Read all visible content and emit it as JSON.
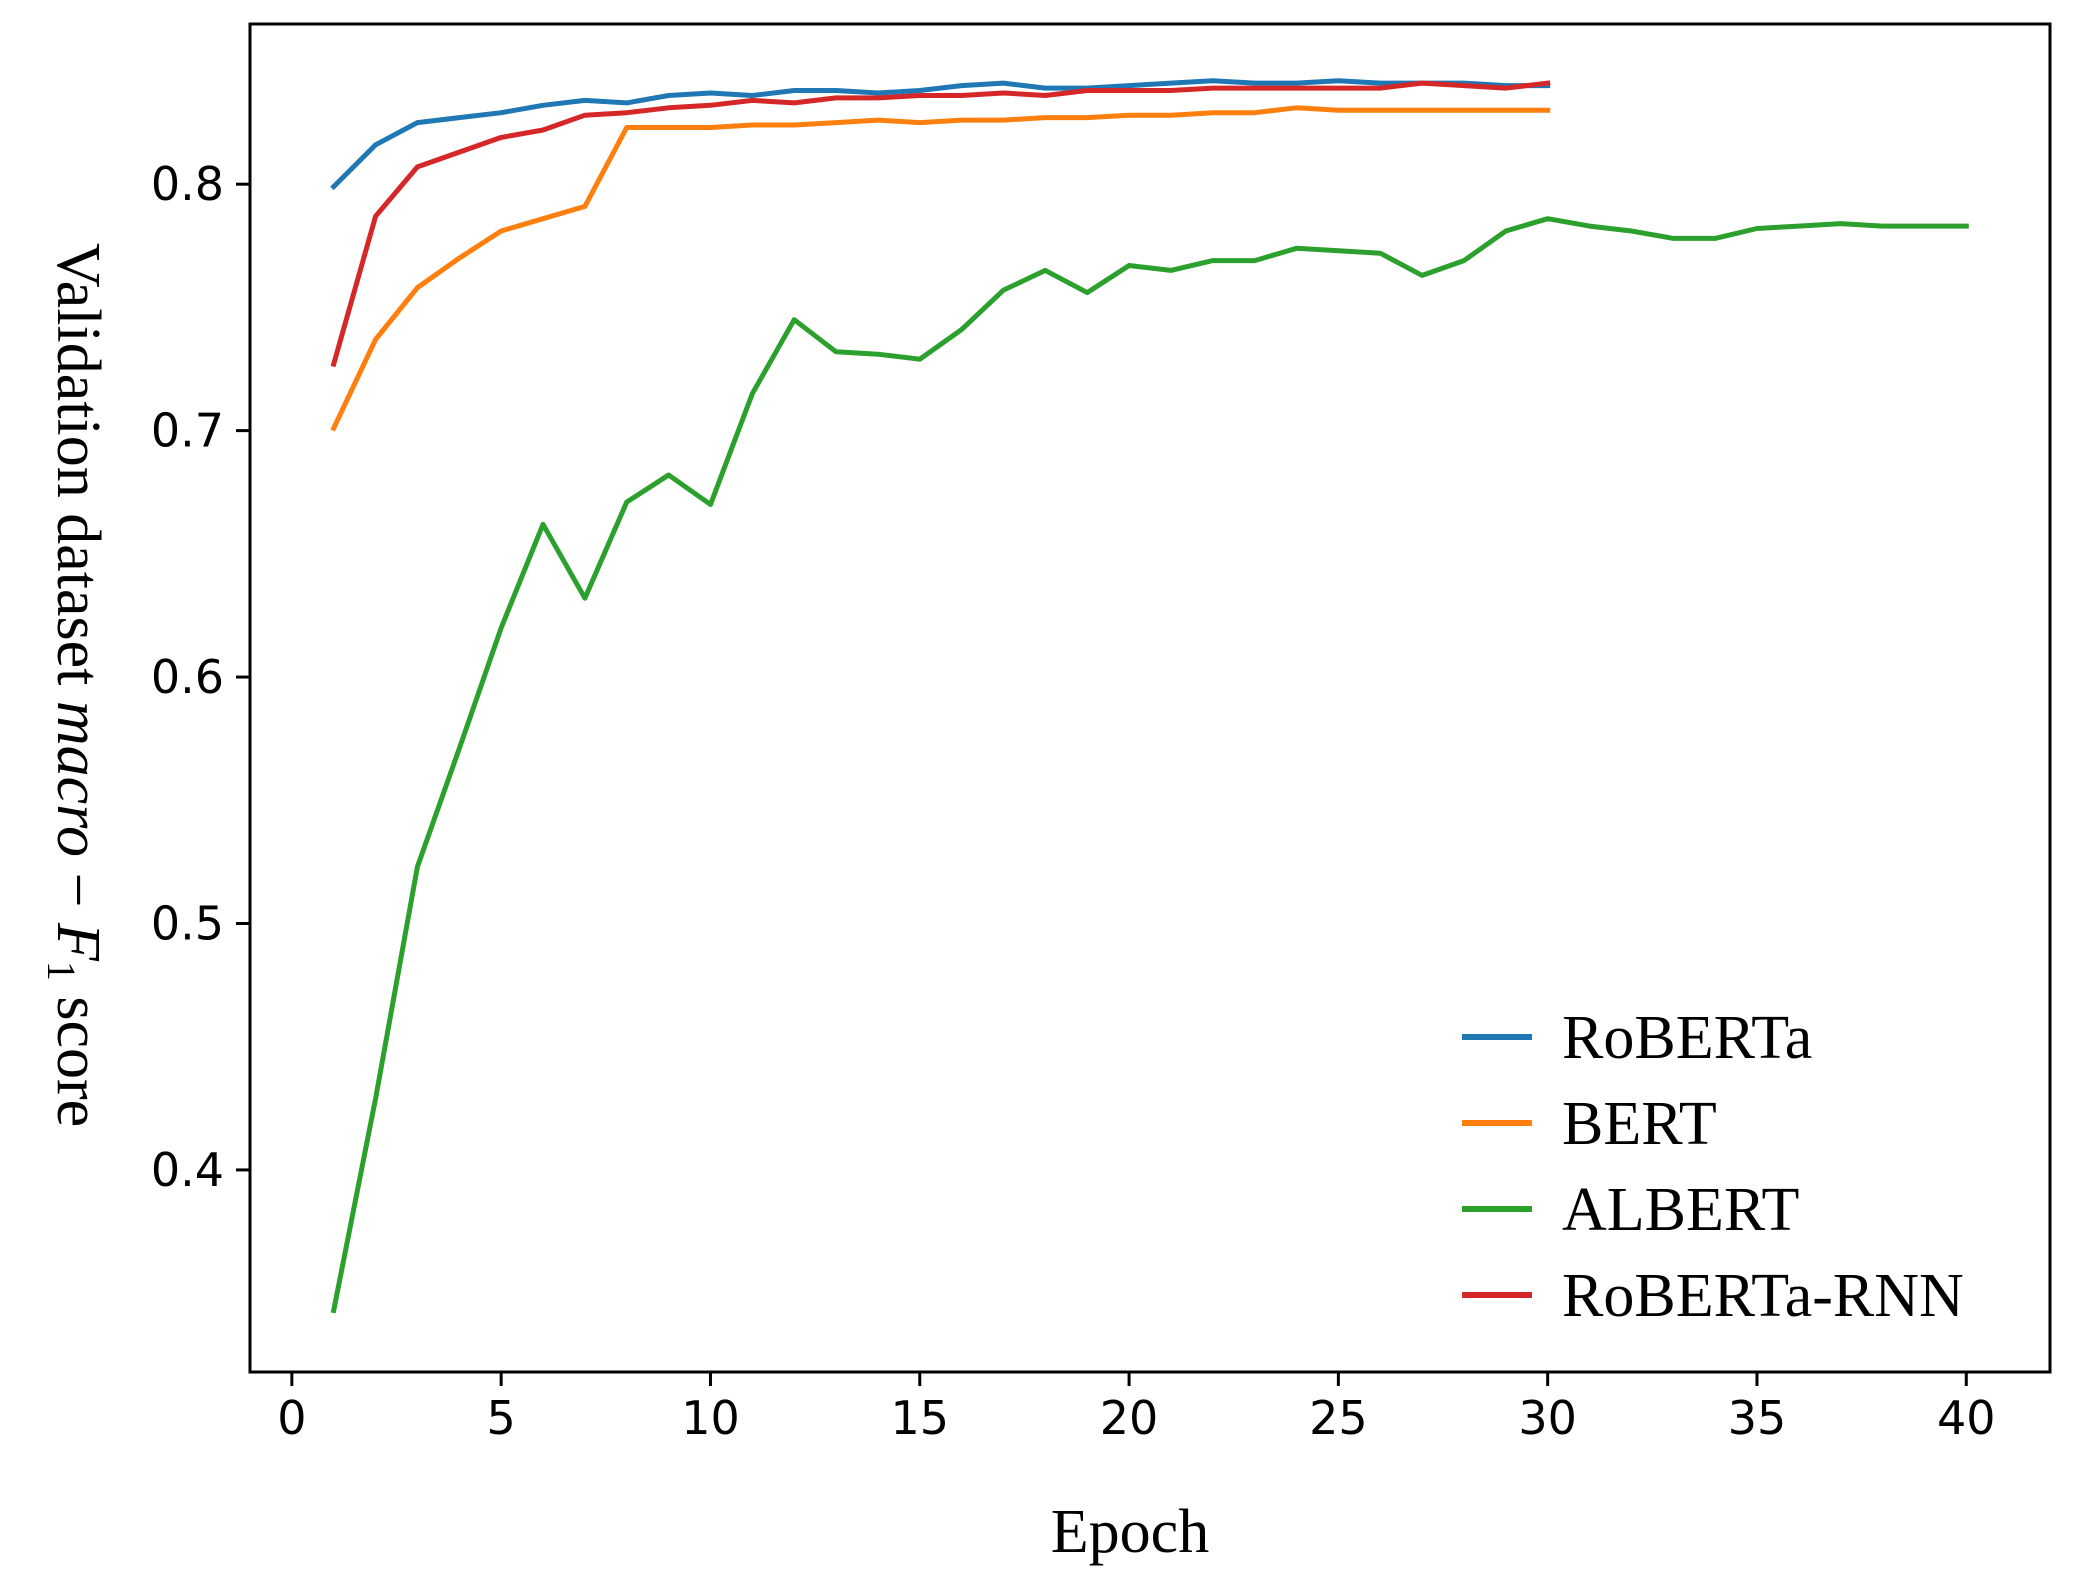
{
  "chart_data": {
    "type": "line",
    "xlabel": "Epoch",
    "ylabel_parts": {
      "prefix": "Validation dataset ",
      "italic": "macro",
      "dash": " − ",
      "F": "F",
      "sub": "1",
      "suffix": " score"
    },
    "xlim": [
      -1,
      42
    ],
    "ylim": [
      0.318,
      0.865
    ],
    "xticks": [
      0,
      5,
      10,
      15,
      20,
      25,
      30,
      35,
      40
    ],
    "yticks": [
      0.4,
      0.5,
      0.6,
      0.7,
      0.8
    ],
    "ytick_labels": [
      "0.4",
      "0.5",
      "0.6",
      "0.7",
      "0.8"
    ],
    "legend": "lower-right",
    "grid": false,
    "series": [
      {
        "name": "RoBERTa",
        "color": "#1f77b4",
        "x": [
          1,
          2,
          3,
          4,
          5,
          6,
          7,
          8,
          9,
          10,
          11,
          12,
          13,
          14,
          15,
          16,
          17,
          18,
          19,
          20,
          21,
          22,
          23,
          24,
          25,
          26,
          27,
          28,
          29,
          30
        ],
        "y": [
          0.799,
          0.816,
          0.825,
          0.827,
          0.829,
          0.832,
          0.834,
          0.833,
          0.836,
          0.837,
          0.836,
          0.838,
          0.838,
          0.837,
          0.838,
          0.84,
          0.841,
          0.839,
          0.839,
          0.84,
          0.841,
          0.842,
          0.841,
          0.841,
          0.842,
          0.841,
          0.841,
          0.841,
          0.84,
          0.84
        ]
      },
      {
        "name": "BERT",
        "color": "#ff7f0e",
        "x": [
          1,
          2,
          3,
          4,
          5,
          6,
          7,
          8,
          9,
          10,
          11,
          12,
          13,
          14,
          15,
          16,
          17,
          18,
          19,
          20,
          21,
          22,
          23,
          24,
          25,
          26,
          27,
          28,
          29,
          30
        ],
        "y": [
          0.701,
          0.737,
          0.758,
          0.77,
          0.781,
          0.786,
          0.791,
          0.823,
          0.823,
          0.823,
          0.824,
          0.824,
          0.825,
          0.826,
          0.825,
          0.826,
          0.826,
          0.827,
          0.827,
          0.828,
          0.828,
          0.829,
          0.829,
          0.831,
          0.83,
          0.83,
          0.83,
          0.83,
          0.83,
          0.83
        ]
      },
      {
        "name": "ALBERT",
        "color": "#2ca02c",
        "x": [
          1,
          2,
          3,
          4,
          5,
          6,
          7,
          8,
          9,
          10,
          11,
          12,
          13,
          14,
          15,
          16,
          17,
          18,
          19,
          20,
          21,
          22,
          23,
          24,
          25,
          26,
          27,
          28,
          29,
          30,
          31,
          32,
          33,
          34,
          35,
          36,
          37,
          38,
          39,
          40
        ],
        "y": [
          0.343,
          0.429,
          0.523,
          0.571,
          0.62,
          0.662,
          0.632,
          0.671,
          0.682,
          0.67,
          0.715,
          0.745,
          0.732,
          0.731,
          0.729,
          0.741,
          0.757,
          0.765,
          0.756,
          0.767,
          0.765,
          0.769,
          0.769,
          0.774,
          0.773,
          0.772,
          0.763,
          0.769,
          0.781,
          0.786,
          0.783,
          0.781,
          0.778,
          0.778,
          0.782,
          0.783,
          0.784,
          0.783,
          0.783,
          0.783
        ]
      },
      {
        "name": "RoBERTa-RNN",
        "color": "#d62728",
        "x": [
          1,
          2,
          3,
          4,
          5,
          6,
          7,
          8,
          9,
          10,
          11,
          12,
          13,
          14,
          15,
          16,
          17,
          18,
          19,
          20,
          21,
          22,
          23,
          24,
          25,
          26,
          27,
          28,
          29,
          30
        ],
        "y": [
          0.727,
          0.787,
          0.807,
          0.813,
          0.819,
          0.822,
          0.828,
          0.829,
          0.831,
          0.832,
          0.834,
          0.833,
          0.835,
          0.835,
          0.836,
          0.836,
          0.837,
          0.836,
          0.838,
          0.838,
          0.838,
          0.839,
          0.839,
          0.839,
          0.839,
          0.839,
          0.841,
          0.84,
          0.839,
          0.841
        ]
      }
    ]
  }
}
